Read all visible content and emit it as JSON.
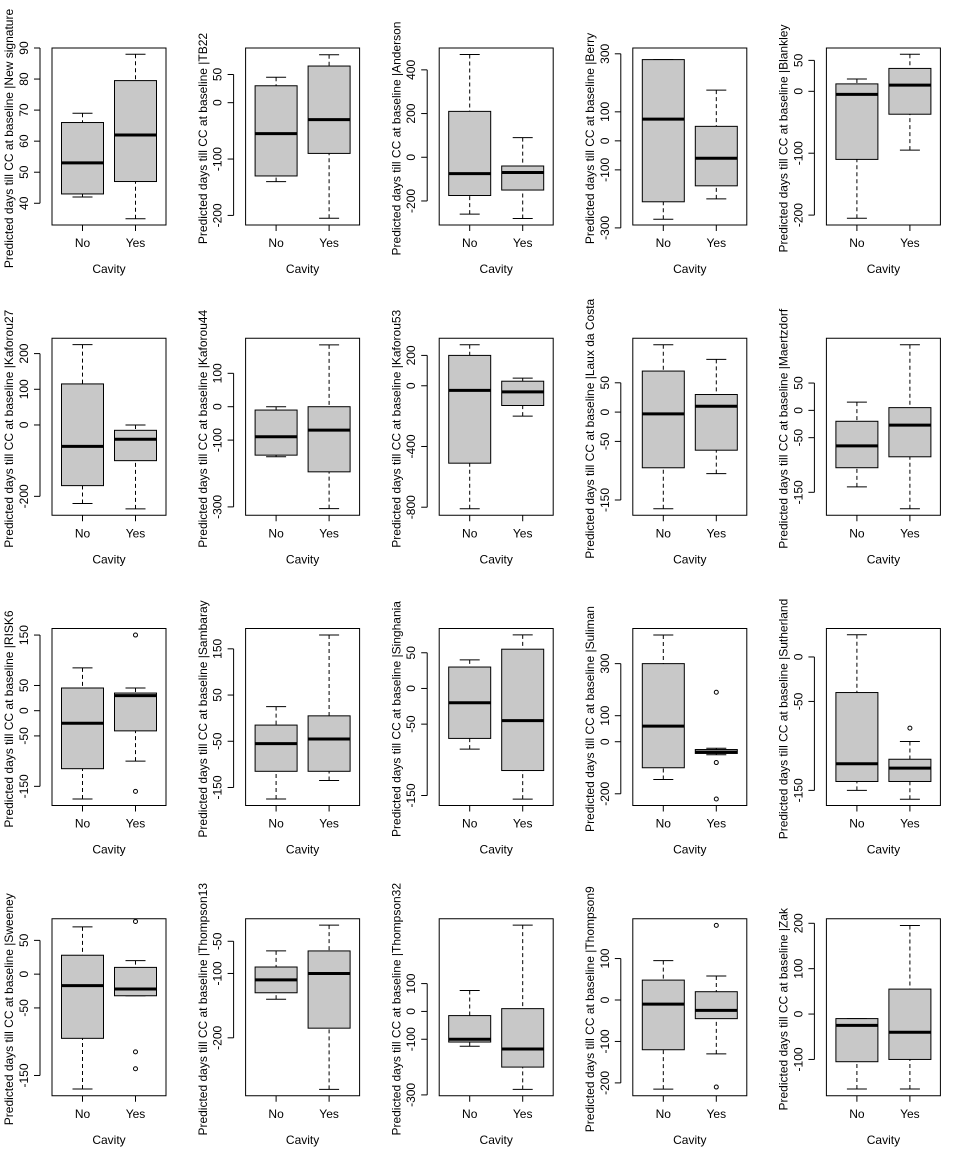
{
  "chart_data": [
    {
      "type": "box",
      "ylabel": "Predicted days till CC at baseline |New signature",
      "xlabel": "Cavity",
      "categories": [
        "No",
        "Yes"
      ],
      "color": "#c8c8c8",
      "ylim": [
        33,
        90
      ],
      "yticks": [
        40,
        50,
        60,
        70,
        80,
        90
      ],
      "boxes": [
        {
          "min": 42,
          "q1": 43,
          "median": 53,
          "q3": 66,
          "max": 69
        },
        {
          "min": 35,
          "q1": 47,
          "median": 62,
          "q3": 79.5,
          "max": 88
        }
      ]
    },
    {
      "type": "box",
      "ylabel": "Predicted days till CC at baseline |TB22",
      "xlabel": "Cavity",
      "categories": [
        "No",
        "Yes"
      ],
      "color": "#c8c8c8",
      "ylim": [
        -217,
        97
      ],
      "yticks": [
        -200,
        -100,
        0,
        50
      ],
      "boxes": [
        {
          "min": -140,
          "q1": -130,
          "median": -55,
          "q3": 30,
          "max": 45
        },
        {
          "min": -205,
          "q1": -90,
          "median": -30,
          "q3": 65,
          "max": 85
        }
      ]
    },
    {
      "type": "box",
      "ylabel": "Predicted days till CC at baseline |Anderson",
      "xlabel": "Cavity",
      "categories": [
        "No",
        "Yes"
      ],
      "color": "#c8c8c8",
      "ylim": [
        -310,
        500
      ],
      "yticks": [
        -200,
        0,
        200,
        400
      ],
      "boxes": [
        {
          "min": -260,
          "q1": -175,
          "median": -75,
          "q3": 210,
          "max": 470
        },
        {
          "min": -280,
          "q1": -150,
          "median": -70,
          "q3": -40,
          "max": 90
        }
      ]
    },
    {
      "type": "box",
      "ylabel": "Predicted days till CC at baseline |Berry",
      "xlabel": "Cavity",
      "categories": [
        "No",
        "Yes"
      ],
      "color": "#c8c8c8",
      "ylim": [
        -290,
        320
      ],
      "yticks": [
        -300,
        -100,
        0,
        100,
        300
      ],
      "boxes": [
        {
          "min": -270,
          "q1": -210,
          "median": 75,
          "q3": 280,
          "max": 280
        },
        {
          "min": -200,
          "q1": -155,
          "median": -60,
          "q3": 50,
          "max": 175
        }
      ]
    },
    {
      "type": "box",
      "ylabel": "Predicted days till CC at baseline |Blankley",
      "xlabel": "Cavity",
      "categories": [
        "No",
        "Yes"
      ],
      "color": "#c8c8c8",
      "ylim": [
        -216,
        70
      ],
      "yticks": [
        -200,
        -100,
        0,
        50
      ],
      "boxes": [
        {
          "min": -205,
          "q1": -110,
          "median": -5,
          "q3": 12,
          "max": 20
        },
        {
          "min": -95,
          "q1": -37,
          "median": 10,
          "q3": 37,
          "max": 60
        }
      ]
    },
    {
      "type": "box",
      "ylabel": "Predicted days till CC at baseline |Kaforou27",
      "xlabel": "Cavity",
      "categories": [
        "No",
        "Yes"
      ],
      "color": "#c8c8c8",
      "ylim": [
        -253,
        243
      ],
      "yticks": [
        -200,
        0,
        100,
        200
      ],
      "boxes": [
        {
          "min": -220,
          "q1": -170,
          "median": -60,
          "q3": 115,
          "max": 225
        },
        {
          "min": -235,
          "q1": -100,
          "median": -40,
          "q3": -15,
          "max": 0
        }
      ]
    },
    {
      "type": "box",
      "ylabel": "Predicted days till CC at baseline |Kaforou44",
      "xlabel": "Cavity",
      "categories": [
        "No",
        "Yes"
      ],
      "color": "#c8c8c8",
      "ylim": [
        -325,
        205
      ],
      "yticks": [
        -300,
        -100,
        0,
        100
      ],
      "boxes": [
        {
          "min": -150,
          "q1": -145,
          "median": -90,
          "q3": -10,
          "max": 0
        },
        {
          "min": -305,
          "q1": -195,
          "median": -70,
          "q3": 0,
          "max": 185
        }
      ]
    },
    {
      "type": "box",
      "ylabel": "Predicted days till CC at baseline |Kaforou53",
      "xlabel": "Cavity",
      "categories": [
        "No",
        "Yes"
      ],
      "color": "#c8c8c8",
      "ylim": [
        -853,
        313
      ],
      "yticks": [
        -800,
        -400,
        0,
        200
      ],
      "boxes": [
        {
          "min": -810,
          "q1": -510,
          "median": -30,
          "q3": 200,
          "max": 270
        },
        {
          "min": -200,
          "q1": -130,
          "median": -40,
          "q3": 30,
          "max": 50
        }
      ]
    },
    {
      "type": "box",
      "ylabel": "Predicted days till CC at baseline |Laux da Costa",
      "xlabel": "Cavity",
      "categories": [
        "No",
        "Yes"
      ],
      "color": "#c8c8c8",
      "ylim": [
        -176,
        126
      ],
      "yticks": [
        -150,
        -50,
        0,
        50
      ],
      "boxes": [
        {
          "min": -165,
          "q1": -95,
          "median": -3,
          "q3": 70,
          "max": 115
        },
        {
          "min": -105,
          "q1": -65,
          "median": 10,
          "q3": 30,
          "max": 90
        }
      ]
    },
    {
      "type": "box",
      "ylabel": "Predicted days till CC at baseline |Maertzdorf",
      "xlabel": "Cavity",
      "categories": [
        "No",
        "Yes"
      ],
      "color": "#c8c8c8",
      "ylim": [
        -192,
        132
      ],
      "yticks": [
        -150,
        -50,
        0,
        50
      ],
      "boxes": [
        {
          "min": -140,
          "q1": -105,
          "median": -65,
          "q3": -20,
          "max": 15
        },
        {
          "min": -180,
          "q1": -85,
          "median": -27,
          "q3": 5,
          "max": 120
        }
      ]
    },
    {
      "type": "box",
      "ylabel": "Predicted days till CC at baseline |RISK6",
      "xlabel": "Cavity",
      "categories": [
        "No",
        "Yes"
      ],
      "color": "#c8c8c8",
      "ylim": [
        -188,
        163
      ],
      "yticks": [
        -150,
        -50,
        0,
        50,
        150
      ],
      "boxes": [
        {
          "min": -175,
          "q1": -115,
          "median": -25,
          "q3": 45,
          "max": 85
        },
        {
          "min": -100,
          "q1": -40,
          "median": 30,
          "q3": 35,
          "max": 45,
          "outliers": [
            150,
            -160
          ]
        }
      ]
    },
    {
      "type": "box",
      "ylabel": "Predicted days till CC at baseline |Sambaray",
      "xlabel": "Cavity",
      "categories": [
        "No",
        "Yes"
      ],
      "color": "#c8c8c8",
      "ylim": [
        -189,
        194
      ],
      "yticks": [
        -150,
        -50,
        50,
        150
      ],
      "boxes": [
        {
          "min": -175,
          "q1": -115,
          "median": -55,
          "q3": -15,
          "max": 25
        },
        {
          "min": -135,
          "q1": -115,
          "median": -45,
          "q3": 5,
          "max": 180
        }
      ]
    },
    {
      "type": "box",
      "ylabel": "Predicted days till CC at baseline |Singhania",
      "xlabel": "Cavity",
      "categories": [
        "No",
        "Yes"
      ],
      "color": "#c8c8c8",
      "ylim": [
        -164,
        84
      ],
      "yticks": [
        -150,
        -50,
        0,
        50
      ],
      "boxes": [
        {
          "min": -85,
          "q1": -70,
          "median": -20,
          "q3": 30,
          "max": 40
        },
        {
          "min": -155,
          "q1": -115,
          "median": -45,
          "q3": 55,
          "max": 75
        }
      ]
    },
    {
      "type": "box",
      "ylabel": "Predicted days till CC at baseline |Suliman",
      "xlabel": "Cavity",
      "categories": [
        "No",
        "Yes"
      ],
      "color": "#c8c8c8",
      "ylim": [
        -245,
        435
      ],
      "yticks": [
        -200,
        0,
        100,
        300
      ],
      "boxes": [
        {
          "min": -145,
          "q1": -100,
          "median": 60,
          "q3": 300,
          "max": 410
        },
        {
          "min": -50,
          "q1": -45,
          "median": -40,
          "q3": -30,
          "max": -25,
          "outliers": [
            190,
            -80,
            -220
          ]
        }
      ]
    },
    {
      "type": "box",
      "ylabel": "Predicted days till CC at baseline |Sutherland",
      "xlabel": "Cavity",
      "categories": [
        "No",
        "Yes"
      ],
      "color": "#c8c8c8",
      "ylim": [
        -167,
        32
      ],
      "yticks": [
        -150,
        -50,
        0
      ],
      "boxes": [
        {
          "min": -150,
          "q1": -140,
          "median": -120,
          "q3": -40,
          "max": 25
        },
        {
          "min": -160,
          "q1": -140,
          "median": -125,
          "q3": -115,
          "max": -95,
          "outliers": [
            -80
          ]
        }
      ]
    },
    {
      "type": "box",
      "ylabel": "Predicted days till CC at baseline |Sweeney",
      "xlabel": "Cavity",
      "categories": [
        "No",
        "Yes"
      ],
      "color": "#c8c8c8",
      "ylim": [
        -180,
        82
      ],
      "yticks": [
        -150,
        -50,
        0,
        50
      ],
      "boxes": [
        {
          "min": -170,
          "q1": -95,
          "median": -17,
          "q3": 28,
          "max": 70
        },
        {
          "min": -32,
          "q1": -32,
          "median": -22,
          "q3": 10,
          "max": 20,
          "outliers": [
            78,
            -115,
            -140
          ]
        }
      ]
    },
    {
      "type": "box",
      "ylabel": "Predicted days till CC at baseline |Thompson13",
      "xlabel": "Cavity",
      "categories": [
        "No",
        "Yes"
      ],
      "color": "#c8c8c8",
      "ylim": [
        -290,
        -15
      ],
      "yticks": [
        -200,
        -100,
        -50
      ],
      "boxes": [
        {
          "min": -140,
          "q1": -130,
          "median": -110,
          "q3": -90,
          "max": -65
        },
        {
          "min": -280,
          "q1": -185,
          "median": -100,
          "q3": -65,
          "max": -25
        }
      ]
    },
    {
      "type": "box",
      "ylabel": "Predicted days till CC at baseline |Thompson32",
      "xlabel": "Cavity",
      "categories": [
        "No",
        "Yes"
      ],
      "color": "#c8c8c8",
      "ylim": [
        -303,
        333
      ],
      "yticks": [
        -300,
        -100,
        0,
        100
      ],
      "boxes": [
        {
          "min": -125,
          "q1": -110,
          "median": -100,
          "q3": -15,
          "max": 75
        },
        {
          "min": -280,
          "q1": -200,
          "median": -135,
          "q3": 10,
          "max": 310
        }
      ]
    },
    {
      "type": "box",
      "ylabel": "Predicted days till CC at baseline |Thompson9",
      "xlabel": "Cavity",
      "categories": [
        "No",
        "Yes"
      ],
      "color": "#c8c8c8",
      "ylim": [
        -231,
        196
      ],
      "yticks": [
        -200,
        -100,
        0,
        100
      ],
      "boxes": [
        {
          "min": -215,
          "q1": -120,
          "median": -10,
          "q3": 48,
          "max": 95
        },
        {
          "min": -130,
          "q1": -45,
          "median": -25,
          "q3": 20,
          "max": 58,
          "outliers": [
            180,
            -210
          ]
        }
      ]
    },
    {
      "type": "box",
      "ylabel": "Predicted days till CC at baseline |Zak",
      "xlabel": "Cavity",
      "categories": [
        "No",
        "Yes"
      ],
      "color": "#c8c8c8",
      "ylim": [
        -180,
        210
      ],
      "yticks": [
        -100,
        0,
        100,
        200
      ],
      "boxes": [
        {
          "min": -165,
          "q1": -105,
          "median": -25,
          "q3": -10,
          "max": -10
        },
        {
          "min": -165,
          "q1": -100,
          "median": -40,
          "q3": 55,
          "max": 195
        }
      ]
    }
  ]
}
